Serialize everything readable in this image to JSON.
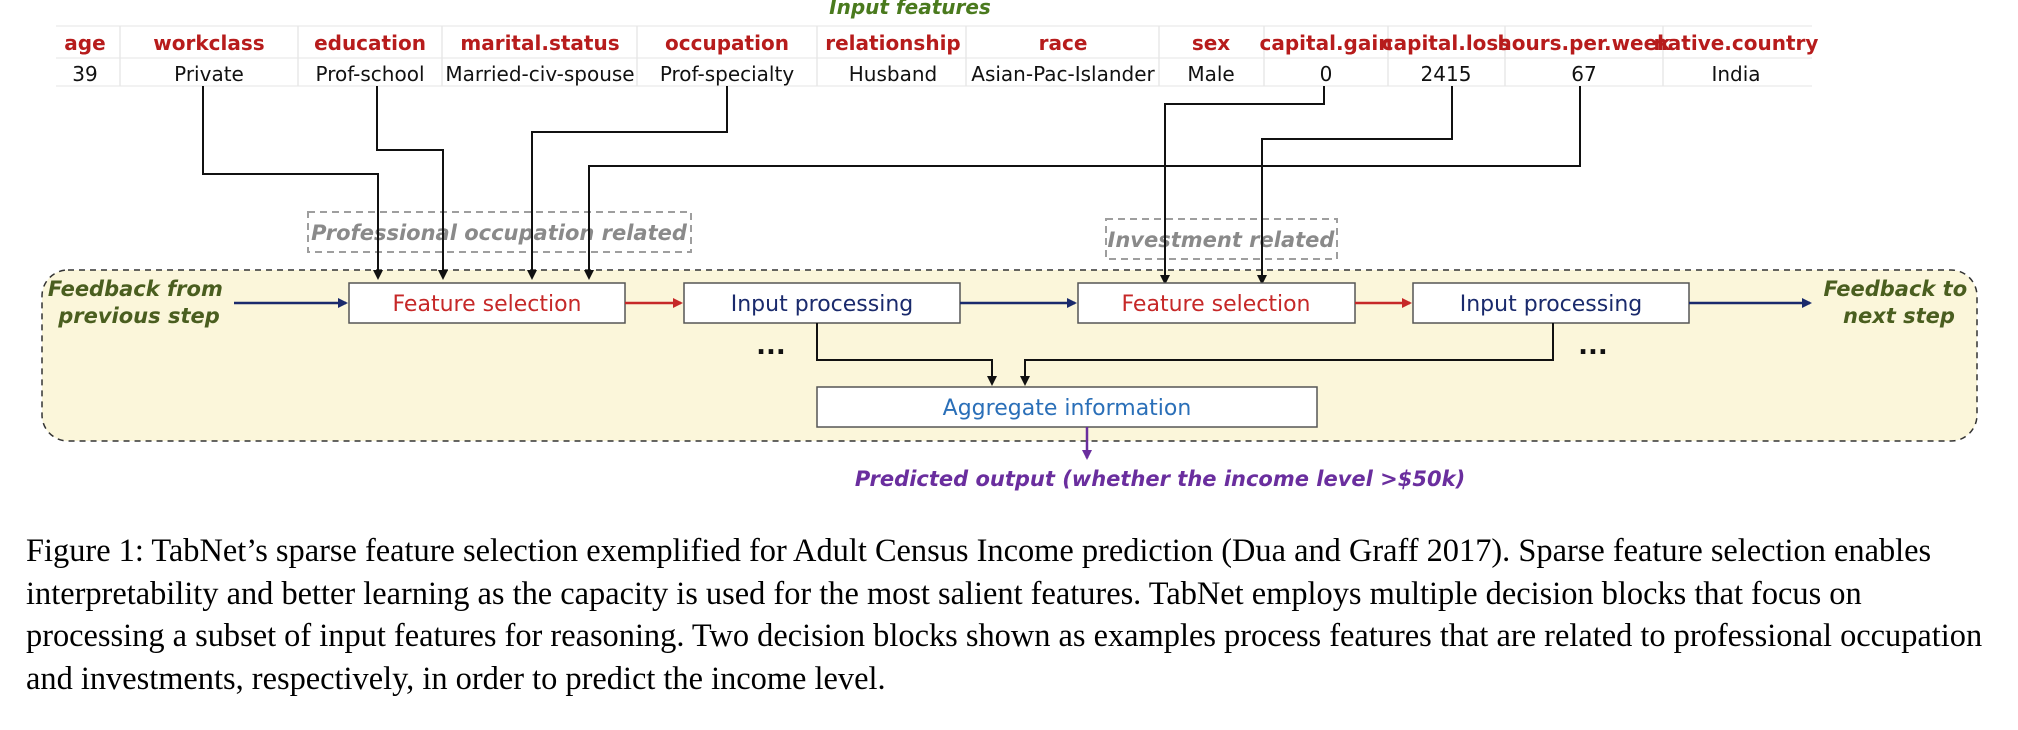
{
  "title": "Input features",
  "columns": [
    {
      "header": "age",
      "value": "39"
    },
    {
      "header": "workclass",
      "value": "Private"
    },
    {
      "header": "education",
      "value": "Prof-school"
    },
    {
      "header": "marital.status",
      "value": "Married-civ-spouse"
    },
    {
      "header": "occupation",
      "value": "Prof-specialty"
    },
    {
      "header": "relationship",
      "value": "Husband"
    },
    {
      "header": "race",
      "value": "Asian-Pac-Islander"
    },
    {
      "header": "sex",
      "value": "Male"
    },
    {
      "header": "capital.gain",
      "value": "0"
    },
    {
      "header": "capital.loss",
      "value": "2415"
    },
    {
      "header": "hours.per.week",
      "value": "67"
    },
    {
      "header": "native.country",
      "value": "India"
    }
  ],
  "groups": {
    "professional": "Professional occupation related",
    "investment": "Investment related"
  },
  "blocks": {
    "feature_selection": "Feature selection",
    "input_processing": "Input processing",
    "aggregate": "Aggregate information"
  },
  "feedback": {
    "from_line1": "Feedback from",
    "from_line2": "previous step",
    "to_line1": "Feedback to",
    "to_line2": "next step"
  },
  "ellipsis": "...",
  "output_label": "Predicted output (whether the income level >$50k)",
  "caption": "Figure 1: TabNet’s sparse feature selection exemplified for Adult Census Income prediction (Dua and Graff 2017). Sparse feature selection enables interpretability and better learning as the capacity is used for the most salient features. TabNet employs multiple decision blocks that focus on processing a subset of input features for reasoning. Two decision blocks shown as examples process features that are related to professional occupation and investments, respectively, in order to predict the income level.",
  "colors": {
    "header_red": "#b71c1c",
    "title_green": "#4a7a1e",
    "feedback_green": "#4a5e1f",
    "navy": "#1a2a6c",
    "red_arrow": "#c62828",
    "aggregate_blue": "#2a6fb8",
    "output_purple": "#6a2e9e",
    "panel_fill": "#fbf6da"
  }
}
